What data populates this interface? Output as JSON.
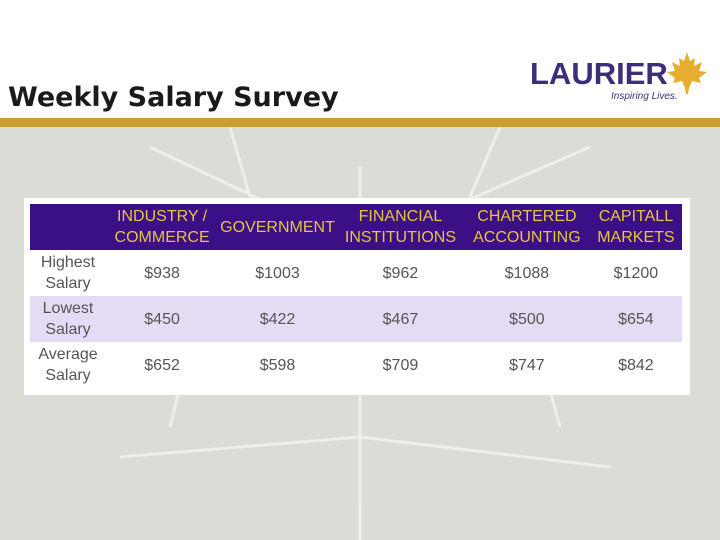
{
  "slide": {
    "title": "Weekly Salary Survey"
  },
  "logo": {
    "word": "LAURIER",
    "tagline": "Inspiring Lives.",
    "icon": "maple-leaf-icon"
  },
  "colors": {
    "header_bg": "#3b0f86",
    "header_text": "#e8c440",
    "accent_rule": "#c8a032",
    "row_shade": "#e4dcf4"
  },
  "table": {
    "headers": [
      "",
      "INDUSTRY / COMMERCE",
      "GOVERNMENT",
      "FINANCIAL INSTITUTIONS",
      "CHARTERED ACCOUNTING",
      "CAPITALL MARKETS"
    ],
    "rows": [
      {
        "label": "Highest Salary",
        "values": [
          "$938",
          "$1003",
          "$962",
          "$1088",
          "$1200"
        ]
      },
      {
        "label": "Lowest Salary",
        "values": [
          "$450",
          "$422",
          "$467",
          "$500",
          "$654"
        ]
      },
      {
        "label": "Average Salary",
        "values": [
          "$652",
          "$598",
          "$709",
          "$747",
          "$842"
        ]
      }
    ]
  }
}
